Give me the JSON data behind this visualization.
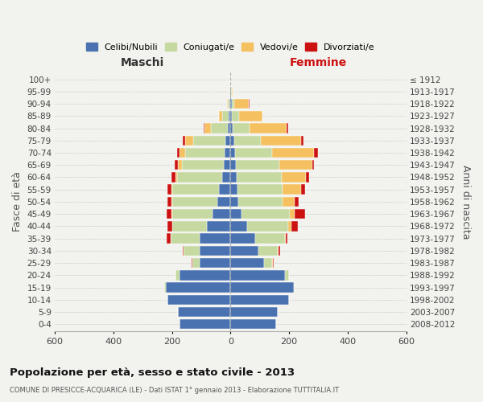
{
  "age_groups": [
    "0-4",
    "5-9",
    "10-14",
    "15-19",
    "20-24",
    "25-29",
    "30-34",
    "35-39",
    "40-44",
    "45-49",
    "50-54",
    "55-59",
    "60-64",
    "65-69",
    "70-74",
    "75-79",
    "80-84",
    "85-89",
    "90-94",
    "95-99",
    "100+"
  ],
  "birth_years": [
    "2008-2012",
    "2003-2007",
    "1998-2002",
    "1993-1997",
    "1988-1992",
    "1983-1987",
    "1978-1982",
    "1973-1977",
    "1968-1972",
    "1963-1967",
    "1958-1962",
    "1953-1957",
    "1948-1952",
    "1943-1947",
    "1938-1942",
    "1933-1937",
    "1928-1932",
    "1923-1927",
    "1918-1922",
    "1913-1917",
    "≤ 1912"
  ],
  "males": {
    "celibi": [
      175,
      180,
      215,
      220,
      175,
      105,
      105,
      105,
      80,
      60,
      45,
      38,
      28,
      22,
      20,
      18,
      8,
      5,
      3,
      1,
      1
    ],
    "coniugati": [
      0,
      0,
      0,
      5,
      12,
      25,
      55,
      100,
      120,
      140,
      155,
      160,
      155,
      145,
      135,
      110,
      60,
      22,
      6,
      2,
      0
    ],
    "vedovi": [
      0,
      0,
      0,
      0,
      0,
      0,
      0,
      0,
      0,
      2,
      2,
      3,
      5,
      12,
      18,
      28,
      22,
      12,
      4,
      0,
      0
    ],
    "divorziati": [
      0,
      0,
      0,
      0,
      0,
      2,
      2,
      12,
      14,
      15,
      12,
      14,
      14,
      12,
      10,
      6,
      2,
      1,
      0,
      0,
      0
    ]
  },
  "females": {
    "nubili": [
      155,
      162,
      200,
      215,
      185,
      115,
      95,
      85,
      58,
      38,
      28,
      24,
      20,
      18,
      16,
      14,
      8,
      5,
      4,
      2,
      0
    ],
    "coniugate": [
      0,
      0,
      0,
      5,
      15,
      28,
      65,
      100,
      140,
      165,
      150,
      155,
      155,
      150,
      125,
      90,
      58,
      25,
      10,
      2,
      0
    ],
    "vedove": [
      0,
      0,
      0,
      0,
      0,
      2,
      5,
      5,
      10,
      15,
      42,
      62,
      82,
      112,
      145,
      138,
      125,
      78,
      48,
      4,
      0
    ],
    "divorziate": [
      0,
      0,
      0,
      0,
      0,
      2,
      5,
      5,
      22,
      38,
      12,
      14,
      12,
      6,
      12,
      6,
      5,
      2,
      2,
      0,
      0
    ]
  },
  "colors": {
    "celibi": "#4a72b0",
    "coniugati": "#c5d9a0",
    "vedovi": "#f5c060",
    "divorziati": "#cc1111"
  },
  "title": "Popolazione per età, sesso e stato civile - 2013",
  "subtitle": "COMUNE DI PRESICCE-ACQUARICA (LE) - Dati ISTAT 1° gennaio 2013 - Elaborazione TUTTITALIA.IT",
  "ylabel": "Fasce di età",
  "ylabel_right": "Anni di nascita",
  "xlabel_left": "Maschi",
  "xlabel_right": "Femmine",
  "xlim": 600,
  "background_color": "#f2f2ee",
  "grid_color": "#cccccc"
}
